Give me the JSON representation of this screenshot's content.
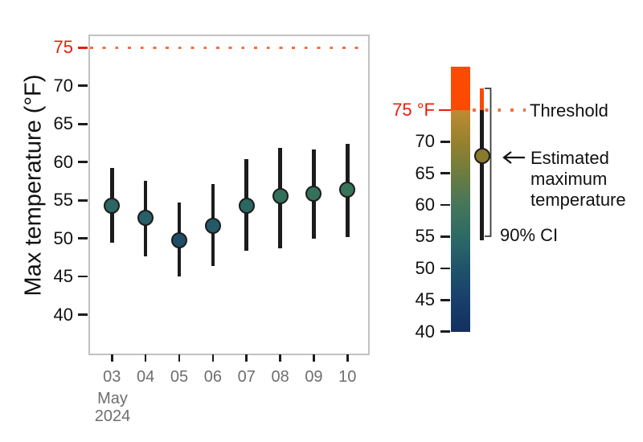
{
  "figure": {
    "y_axis_title": "Max temperature (°F)",
    "x_month_label": "May",
    "x_year_label": "2024",
    "colors": {
      "threshold_text_red": "#ea1c0d",
      "threshold_dotted_orange": "#f86c3e",
      "above_threshold_orange": "#fc4a03",
      "errorbar_black": "#1c1c1c",
      "axis_text_gray": "#6e6e6e",
      "panel_border_gray": "#c2c2c2"
    }
  },
  "chart_data": {
    "type": "scatter",
    "subtype": "pointrange",
    "title": "",
    "xlabel": "May 2024",
    "ylabel": "Max temperature (°F)",
    "x_categories": [
      "03",
      "04",
      "05",
      "06",
      "07",
      "08",
      "09",
      "10"
    ],
    "y_ticks": [
      75,
      70,
      65,
      60,
      55,
      50,
      45,
      40
    ],
    "ylim": [
      34.9,
      76.7
    ],
    "grid": false,
    "ci_level": "90%",
    "threshold": {
      "value": 75,
      "axis_label": "75",
      "label": "Threshold"
    },
    "points": [
      {
        "date": "03",
        "estimate": 54.3,
        "ci_low": 49.4,
        "ci_high": 59.2,
        "color": "#2c6763"
      },
      {
        "date": "04",
        "estimate": 52.7,
        "ci_low": 47.7,
        "ci_high": 57.5,
        "color": "#276068"
      },
      {
        "date": "05",
        "estimate": 49.8,
        "ci_low": 45.0,
        "ci_high": 54.7,
        "color": "#1e4f66"
      },
      {
        "date": "06",
        "estimate": 51.6,
        "ci_low": 46.4,
        "ci_high": 57.1,
        "color": "#235a69"
      },
      {
        "date": "07",
        "estimate": 54.3,
        "ci_low": 48.4,
        "ci_high": 60.4,
        "color": "#2c6762"
      },
      {
        "date": "08",
        "estimate": 55.5,
        "ci_low": 48.7,
        "ci_high": 61.9,
        "color": "#33705c"
      },
      {
        "date": "09",
        "estimate": 55.9,
        "ci_low": 50.0,
        "ci_high": 61.7,
        "color": "#35715b"
      },
      {
        "date": "10",
        "estimate": 56.4,
        "ci_low": 50.2,
        "ci_high": 62.4,
        "color": "#387459"
      }
    ]
  },
  "legend": {
    "colorbar": {
      "value_range": [
        40,
        82
      ],
      "ticks": [
        {
          "value": 75,
          "label": "75 °F",
          "red": true
        },
        {
          "value": 70,
          "label": "70",
          "red": false
        },
        {
          "value": 65,
          "label": "65",
          "red": false
        },
        {
          "value": 60,
          "label": "60",
          "red": false
        },
        {
          "value": 55,
          "label": "55",
          "red": false
        },
        {
          "value": 50,
          "label": "50",
          "red": false
        },
        {
          "value": 45,
          "label": "45",
          "red": false
        },
        {
          "value": 40,
          "label": "40",
          "red": false
        }
      ],
      "gradient_stops": [
        {
          "at": 0,
          "color": "#fc4a03"
        },
        {
          "at": 16.3,
          "color": "#fc4a03"
        },
        {
          "at": 16.5,
          "color": "#bd8b33"
        },
        {
          "at": 28.3,
          "color": "#97812d"
        },
        {
          "at": 40.2,
          "color": "#6d7c3f"
        },
        {
          "at": 52.2,
          "color": "#45765a"
        },
        {
          "at": 64.1,
          "color": "#2d6a65"
        },
        {
          "at": 76.0,
          "color": "#20536a"
        },
        {
          "at": 87.9,
          "color": "#183f6b"
        },
        {
          "at": 100,
          "color": "#132f60"
        }
      ]
    },
    "annotations": {
      "threshold": "Threshold",
      "estimate": "Estimated maximum temperature",
      "ci": "90% CI"
    },
    "example": {
      "estimate": 67.7,
      "ci_low": 54.4,
      "ci_high": 78.4,
      "color": "#8a7a2c"
    }
  }
}
